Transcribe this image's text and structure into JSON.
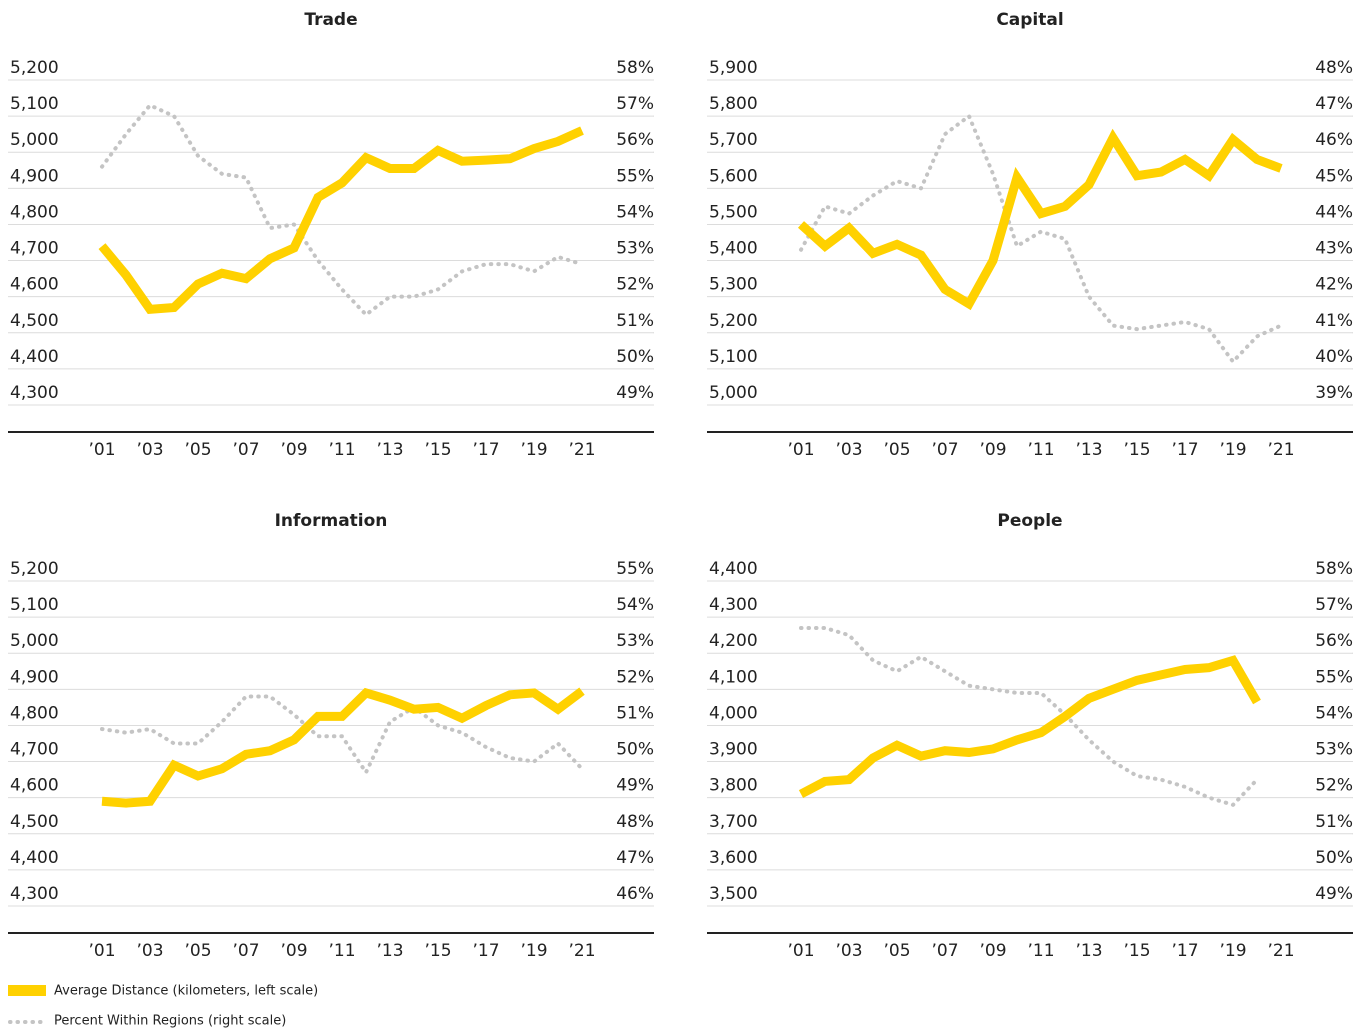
{
  "chart_data": [
    {
      "type": "line",
      "title": "Trade",
      "categories": [
        "’01",
        null,
        "’03",
        null,
        "’05",
        null,
        "’07",
        null,
        "’09",
        null,
        "’11",
        null,
        "’13",
        null,
        "’15",
        null,
        "’17",
        null,
        "’19",
        null,
        "’21"
      ],
      "series": [
        {
          "name": "Average Distance (kilometers, left scale)",
          "color": "#ffd100",
          "axis": "y",
          "values": [
            4740,
            4660,
            4565,
            4570,
            4635,
            4665,
            4650,
            4705,
            4735,
            4875,
            4915,
            4985,
            4955,
            4955,
            5005,
            4975,
            4978,
            4982,
            5010,
            5030,
            5060
          ]
        },
        {
          "name": "Percent Within Regions (right scale)",
          "color": "#c4c4c4",
          "axis": "y2",
          "values": [
            55.6,
            56.5,
            57.3,
            57.0,
            55.9,
            55.4,
            55.3,
            53.9,
            54.0,
            53.0,
            52.2,
            51.5,
            52.0,
            52.0,
            52.2,
            52.7,
            52.9,
            52.9,
            52.7,
            53.1,
            52.9
          ]
        }
      ],
      "ylim": [
        4300,
        5200
      ],
      "yticks": [
        {
          "value": 5200,
          "label": "5,200"
        },
        {
          "value": 5100,
          "label": "5,100"
        },
        {
          "value": 5000,
          "label": "5,000"
        },
        {
          "value": 4900,
          "label": "4,900"
        },
        {
          "value": 4800,
          "label": "4,800"
        },
        {
          "value": 4700,
          "label": "4,700"
        },
        {
          "value": 4600,
          "label": "4,600"
        },
        {
          "value": 4500,
          "label": "4,500"
        },
        {
          "value": 4400,
          "label": "4,400"
        },
        {
          "value": 4300,
          "label": "4,300"
        }
      ],
      "y2lim": [
        49,
        58
      ],
      "y2ticks": [
        {
          "value": 58,
          "label": "58%"
        },
        {
          "value": 57,
          "label": "57%"
        },
        {
          "value": 56,
          "label": "56%"
        },
        {
          "value": 55,
          "label": "55%"
        },
        {
          "value": 54,
          "label": "54%"
        },
        {
          "value": 53,
          "label": "53%"
        },
        {
          "value": 52,
          "label": "52%"
        },
        {
          "value": 51,
          "label": "51%"
        },
        {
          "value": 50,
          "label": "50%"
        },
        {
          "value": 49,
          "label": "49%"
        }
      ],
      "grid": true
    },
    {
      "type": "line",
      "title": "Capital",
      "categories": [
        "’01",
        null,
        "’03",
        null,
        "’05",
        null,
        "’07",
        null,
        "’09",
        null,
        "’11",
        null,
        "’13",
        null,
        "’15",
        null,
        "’17",
        null,
        "’19",
        null,
        "’21"
      ],
      "series": [
        {
          "color": "#ffd100",
          "axis": "y",
          "values": [
            5500,
            5440,
            5490,
            5420,
            5445,
            5415,
            5320,
            5280,
            5400,
            5630,
            5530,
            5550,
            5610,
            5740,
            5635,
            5645,
            5680,
            5635,
            5735,
            5680,
            5655
          ]
        },
        {
          "color": "#c4c4c4",
          "axis": "y2",
          "values": [
            43.3,
            44.5,
            44.3,
            44.8,
            45.2,
            45.0,
            46.5,
            47.0,
            45.4,
            43.4,
            43.8,
            43.6,
            42.0,
            41.2,
            41.1,
            41.2,
            41.3,
            41.1,
            40.2,
            40.9,
            41.2
          ]
        }
      ],
      "ylim": [
        5000,
        5900
      ],
      "yticks": [
        {
          "value": 5900,
          "label": "5,900"
        },
        {
          "value": 5800,
          "label": "5,800"
        },
        {
          "value": 5700,
          "label": "5,700"
        },
        {
          "value": 5600,
          "label": "5,600"
        },
        {
          "value": 5500,
          "label": "5,500"
        },
        {
          "value": 5400,
          "label": "5,400"
        },
        {
          "value": 5300,
          "label": "5,300"
        },
        {
          "value": 5200,
          "label": "5,200"
        },
        {
          "value": 5100,
          "label": "5,100"
        },
        {
          "value": 5000,
          "label": "5,000"
        }
      ],
      "y2lim": [
        39,
        48
      ],
      "y2ticks": [
        {
          "value": 48,
          "label": "48%"
        },
        {
          "value": 47,
          "label": "47%"
        },
        {
          "value": 46,
          "label": "46%"
        },
        {
          "value": 45,
          "label": "45%"
        },
        {
          "value": 44,
          "label": "44%"
        },
        {
          "value": 43,
          "label": "43%"
        },
        {
          "value": 42,
          "label": "42%"
        },
        {
          "value": 41,
          "label": "41%"
        },
        {
          "value": 40,
          "label": "40%"
        },
        {
          "value": 39,
          "label": "39%"
        }
      ],
      "grid": true
    },
    {
      "type": "line",
      "title": "Information",
      "categories": [
        "’01",
        null,
        "’03",
        null,
        "’05",
        null,
        "’07",
        null,
        "’09",
        null,
        "’11",
        null,
        "’13",
        null,
        "’15",
        null,
        "’17",
        null,
        "’19",
        null,
        "’21"
      ],
      "series": [
        {
          "color": "#ffd100",
          "axis": "y",
          "values": [
            4590,
            4585,
            4590,
            4690,
            4660,
            4680,
            4720,
            4730,
            4760,
            4825,
            4825,
            4890,
            4870,
            4845,
            4850,
            4820,
            4855,
            4885,
            4890,
            4845,
            4895
          ]
        },
        {
          "color": "#c4c4c4",
          "axis": "y2",
          "values": [
            50.9,
            50.8,
            50.9,
            50.5,
            50.5,
            51.1,
            51.8,
            51.8,
            51.3,
            50.7,
            50.7,
            49.7,
            51.1,
            51.5,
            51.0,
            50.8,
            50.4,
            50.1,
            50.0,
            50.5,
            49.8
          ]
        }
      ],
      "ylim": [
        4300,
        5200
      ],
      "yticks": [
        {
          "value": 5200,
          "label": "5,200"
        },
        {
          "value": 5100,
          "label": "5,100"
        },
        {
          "value": 5000,
          "label": "5,000"
        },
        {
          "value": 4900,
          "label": "4,900"
        },
        {
          "value": 4800,
          "label": "4,800"
        },
        {
          "value": 4700,
          "label": "4,700"
        },
        {
          "value": 4600,
          "label": "4,600"
        },
        {
          "value": 4500,
          "label": "4,500"
        },
        {
          "value": 4400,
          "label": "4,400"
        },
        {
          "value": 4300,
          "label": "4,300"
        }
      ],
      "y2lim": [
        46,
        55
      ],
      "y2ticks": [
        {
          "value": 55,
          "label": "55%"
        },
        {
          "value": 54,
          "label": "54%"
        },
        {
          "value": 53,
          "label": "53%"
        },
        {
          "value": 52,
          "label": "52%"
        },
        {
          "value": 51,
          "label": "51%"
        },
        {
          "value": 50,
          "label": "50%"
        },
        {
          "value": 49,
          "label": "49%"
        },
        {
          "value": 48,
          "label": "48%"
        },
        {
          "value": 47,
          "label": "47%"
        },
        {
          "value": 46,
          "label": "46%"
        }
      ],
      "grid": true
    },
    {
      "type": "line",
      "title": "People",
      "categories": [
        "’01",
        null,
        "’03",
        null,
        "’05",
        null,
        "’07",
        null,
        "’09",
        null,
        "’11",
        null,
        "’13",
        null,
        "’15",
        null,
        "’17",
        null,
        "’19",
        null,
        "’21"
      ],
      "series": [
        {
          "color": "#ffd100",
          "axis": "y",
          "values": [
            3810,
            3845,
            3850,
            3910,
            3945,
            3915,
            3930,
            3925,
            3935,
            3960,
            3980,
            4025,
            4075,
            4100,
            4125,
            4140,
            4155,
            4160,
            4180,
            4065,
            null
          ]
        },
        {
          "color": "#c4c4c4",
          "axis": "y2",
          "values": [
            56.7,
            56.7,
            56.5,
            55.8,
            55.5,
            55.9,
            55.5,
            55.1,
            55.0,
            54.9,
            54.9,
            54.3,
            53.6,
            53.0,
            52.6,
            52.5,
            52.3,
            52.0,
            51.8,
            52.5,
            null
          ]
        }
      ],
      "ylim": [
        3500,
        4400
      ],
      "yticks": [
        {
          "value": 4400,
          "label": "4,400"
        },
        {
          "value": 4300,
          "label": "4,300"
        },
        {
          "value": 4200,
          "label": "4,200"
        },
        {
          "value": 4100,
          "label": "4,100"
        },
        {
          "value": 4000,
          "label": "4,000"
        },
        {
          "value": 3900,
          "label": "3,900"
        },
        {
          "value": 3800,
          "label": "3,800"
        },
        {
          "value": 3700,
          "label": "3,700"
        },
        {
          "value": 3600,
          "label": "3,600"
        },
        {
          "value": 3500,
          "label": "3,500"
        }
      ],
      "y2lim": [
        49,
        58
      ],
      "y2ticks": [
        {
          "value": 58,
          "label": "58%"
        },
        {
          "value": 57,
          "label": "57%"
        },
        {
          "value": 56,
          "label": "56%"
        },
        {
          "value": 55,
          "label": "55%"
        },
        {
          "value": 54,
          "label": "54%"
        },
        {
          "value": 53,
          "label": "53%"
        },
        {
          "value": 52,
          "label": "52%"
        },
        {
          "value": 51,
          "label": "51%"
        },
        {
          "value": 50,
          "label": "50%"
        },
        {
          "value": 49,
          "label": "49%"
        }
      ],
      "grid": true
    }
  ]
}
